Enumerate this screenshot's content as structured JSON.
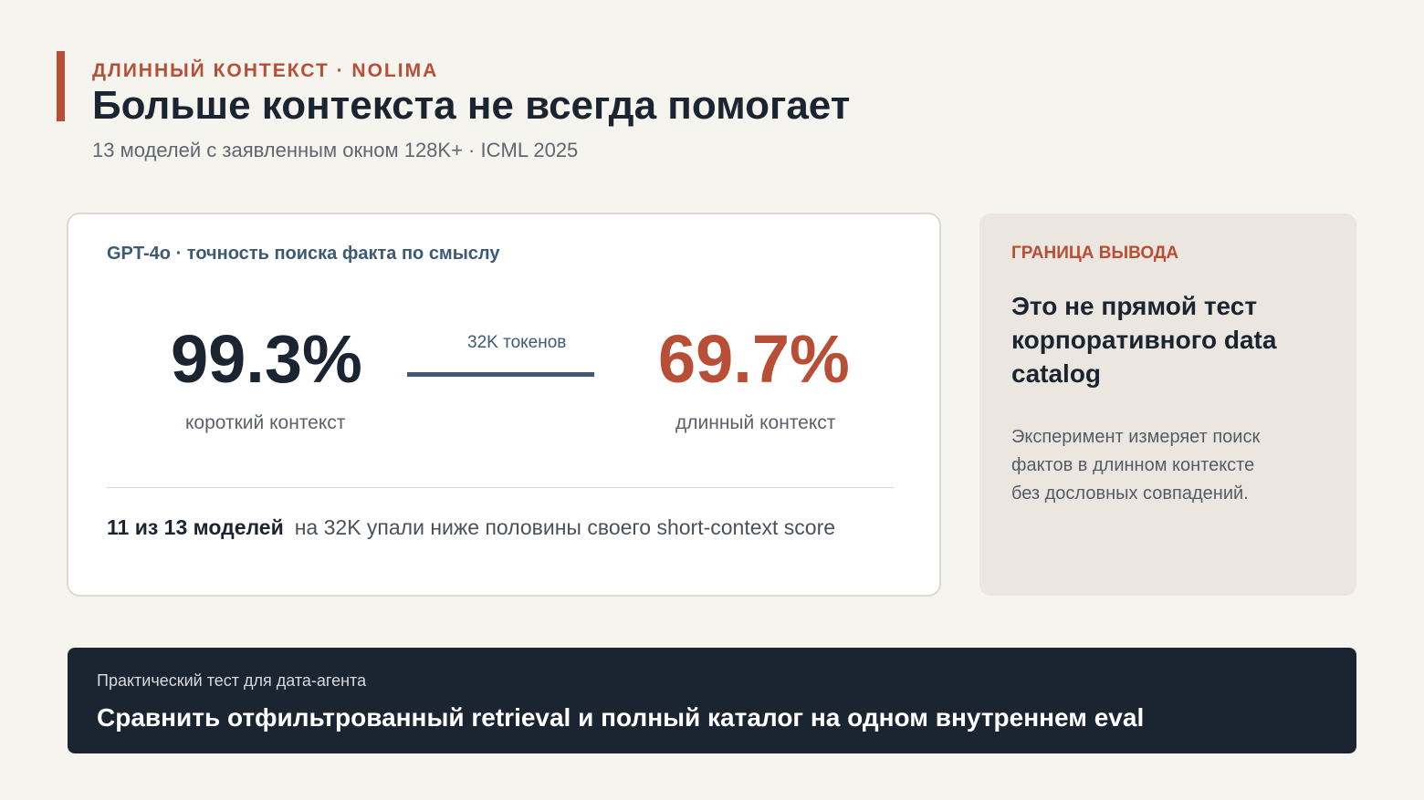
{
  "header": {
    "eyebrow": "ДЛИННЫЙ КОНТЕКСТ · NOLIMA",
    "title": "Больше контекста не всегда помогает",
    "subtitle": "13 моделей с заявленным окном 128K+ · ICML 2025"
  },
  "main_card": {
    "label": "GPT-4o · точность поиска факта по смыслу",
    "short_value": "99.3%",
    "short_caption": "короткий контекст",
    "connector_label": "32K токенов",
    "long_value": "69.7%",
    "long_caption": "длинный контекст",
    "summary_strong": "11 из 13 моделей",
    "summary_rest": "на 32K упали ниже половины своего short-context score"
  },
  "side_card": {
    "label": "ГРАНИЦА ВЫВОДА",
    "title": "Это не прямой тест корпоративного data catalog",
    "body": "Эксперимент измеряет поиск фактов в длинном контексте без дословных совпадений."
  },
  "banner": {
    "label": "Практический тест для дата-агента",
    "title": "Сравнить отфильтрованный retrieval и полный каталог на одном внутреннем eval"
  },
  "colors": {
    "accent": "#b84e35",
    "dark": "#1b2431",
    "steel": "#3d5a75",
    "background": "#f6f4ef"
  }
}
